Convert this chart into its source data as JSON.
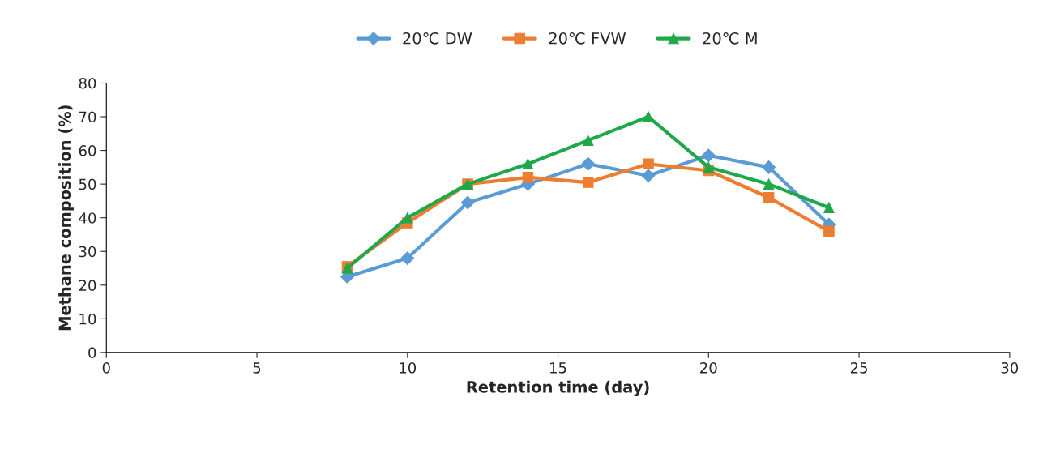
{
  "chart_data": {
    "type": "line",
    "xlabel": "Retention time (day)",
    "ylabel": "Methane composition (%)",
    "x": [
      8,
      10,
      12,
      14,
      16,
      18,
      20,
      22,
      24
    ],
    "series": [
      {
        "name": "20℃ DW",
        "color": "#5b9bd5",
        "marker": "diamond",
        "values": [
          22.5,
          28,
          44.5,
          50,
          56,
          52.5,
          58.5,
          55,
          38
        ]
      },
      {
        "name": "20℃ FVW",
        "color": "#ed7d31",
        "marker": "square",
        "values": [
          25.5,
          38.5,
          50,
          52,
          50.5,
          56,
          54,
          46,
          36
        ]
      },
      {
        "name": "20℃ M",
        "color": "#1fa84a",
        "marker": "triangle",
        "values": [
          25,
          40,
          50,
          56,
          63,
          70,
          55,
          50,
          43
        ]
      }
    ],
    "xlim": [
      0,
      30
    ],
    "xticks": [
      0,
      5,
      10,
      15,
      20,
      25,
      30
    ],
    "ylim": [
      0,
      80
    ],
    "yticks": [
      0,
      10,
      20,
      30,
      40,
      50,
      60,
      70,
      80
    ],
    "grid": false,
    "legend": "top",
    "line_style": "solid"
  }
}
